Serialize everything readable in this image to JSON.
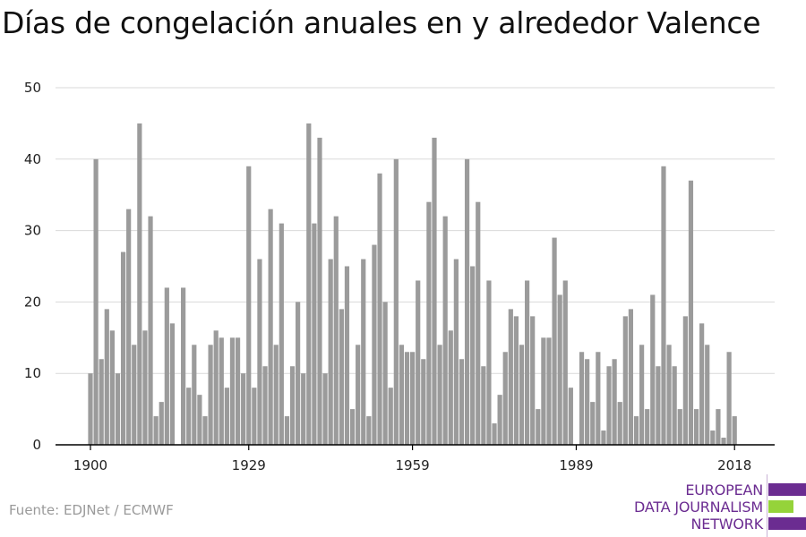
{
  "title": "Días de congelación anuales en y alrededor Valence",
  "source": "Fuente: EDJNet / ECMWF",
  "logo": {
    "lines": [
      "EUROPEAN",
      "DATA JOURNALISM",
      "NETWORK"
    ],
    "colors": {
      "purple": "#6b2c91",
      "green": "#95d33a"
    }
  },
  "colors": {
    "bar": "#9b9b9b",
    "grid": "#d9d9d9",
    "axis": "#000000"
  },
  "chart_data": {
    "type": "bar",
    "title": "Días de congelación anuales en y alrededor Valence",
    "xlabel": "",
    "ylabel": "",
    "ylim": [
      0,
      50
    ],
    "yticks": [
      0,
      10,
      20,
      30,
      40,
      50
    ],
    "xticks": [
      1900,
      1929,
      1959,
      1989,
      2018
    ],
    "grid": true,
    "x": [
      1900,
      1901,
      1902,
      1903,
      1904,
      1905,
      1906,
      1907,
      1908,
      1909,
      1910,
      1911,
      1912,
      1913,
      1914,
      1915,
      1916,
      1917,
      1918,
      1919,
      1920,
      1921,
      1922,
      1923,
      1924,
      1925,
      1926,
      1927,
      1928,
      1929,
      1930,
      1931,
      1932,
      1933,
      1934,
      1935,
      1936,
      1937,
      1938,
      1939,
      1940,
      1941,
      1942,
      1943,
      1944,
      1945,
      1946,
      1947,
      1948,
      1949,
      1950,
      1951,
      1952,
      1953,
      1954,
      1955,
      1956,
      1957,
      1958,
      1959,
      1960,
      1961,
      1962,
      1963,
      1964,
      1965,
      1966,
      1967,
      1968,
      1969,
      1970,
      1971,
      1972,
      1973,
      1974,
      1975,
      1976,
      1977,
      1978,
      1979,
      1980,
      1981,
      1982,
      1983,
      1984,
      1985,
      1986,
      1987,
      1988,
      1989,
      1990,
      1991,
      1992,
      1993,
      1994,
      1995,
      1996,
      1997,
      1998,
      1999,
      2000,
      2001,
      2002,
      2003,
      2004,
      2005,
      2006,
      2007,
      2008,
      2009,
      2010,
      2011,
      2012,
      2013,
      2014,
      2015,
      2016,
      2017,
      2018
    ],
    "values": [
      10,
      40,
      12,
      19,
      16,
      10,
      27,
      33,
      14,
      45,
      16,
      32,
      4,
      6,
      22,
      17,
      0,
      22,
      8,
      14,
      7,
      4,
      14,
      16,
      15,
      8,
      15,
      15,
      10,
      39,
      8,
      26,
      11,
      33,
      14,
      31,
      4,
      11,
      20,
      10,
      45,
      31,
      43,
      10,
      26,
      32,
      19,
      25,
      5,
      14,
      26,
      4,
      28,
      38,
      20,
      8,
      40,
      14,
      13,
      13,
      23,
      12,
      34,
      43,
      14,
      32,
      16,
      26,
      12,
      40,
      25,
      34,
      11,
      23,
      3,
      7,
      13,
      19,
      18,
      14,
      23,
      18,
      5,
      15,
      15,
      29,
      21,
      23,
      8,
      0,
      13,
      12,
      6,
      13,
      2,
      11,
      12,
      6,
      18,
      19,
      4,
      14,
      5,
      21,
      11,
      39,
      14,
      11,
      5,
      18,
      37,
      5,
      17,
      14,
      2,
      5,
      1,
      13,
      4
    ]
  }
}
